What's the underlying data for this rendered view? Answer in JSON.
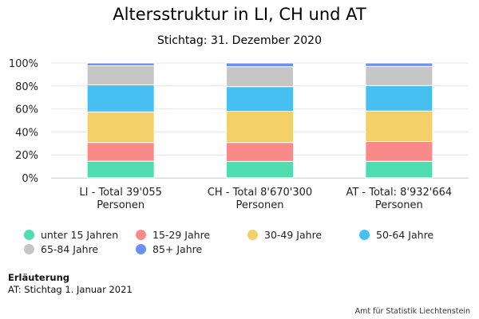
{
  "chart_data": {
    "type": "bar",
    "stacked": true,
    "title": "Altersstruktur in LI, CH und AT",
    "subtitle": "Stichtag: 31. Dezember 2020",
    "categories": [
      [
        "LI - Total 39'055",
        "Personen"
      ],
      [
        "CH - Total 8'670'300",
        "Personen"
      ],
      [
        "AT - Total: 8'932'664",
        "Personen"
      ]
    ],
    "ylim": [
      0,
      100
    ],
    "yticks": [
      "0%",
      "20%",
      "40%",
      "60%",
      "80%",
      "100%"
    ],
    "ytick_values": [
      0,
      20,
      40,
      60,
      80,
      100
    ],
    "grid": true,
    "legend_position": "bottom",
    "series": [
      {
        "name": "unter 15 Jahren",
        "color": "#4fddb0",
        "values": [
          14.5,
          14.3,
          14.4
        ]
      },
      {
        "name": "15-29 Jahre",
        "color": "#f98a8a",
        "values": [
          16.3,
          16.5,
          17.2
        ]
      },
      {
        "name": "30-49 Jahre",
        "color": "#f4d06a",
        "values": [
          26.6,
          27.2,
          26.6
        ]
      },
      {
        "name": "50-64 Jahre",
        "color": "#47bff0",
        "values": [
          23.6,
          21.4,
          22.1
        ]
      },
      {
        "name": "65-84 Jahre",
        "color": "#c6c6c6",
        "values": [
          16.6,
          17.4,
          16.7
        ]
      },
      {
        "name": "85+ Jahre",
        "color": "#6b90f5",
        "values": [
          2.4,
          3.2,
          3.0
        ]
      }
    ]
  },
  "note": {
    "heading": "Erläuterung",
    "text": "AT: Stichtag 1. Januar 2021"
  },
  "credits": "Amt für Statistik Liechtenstein"
}
